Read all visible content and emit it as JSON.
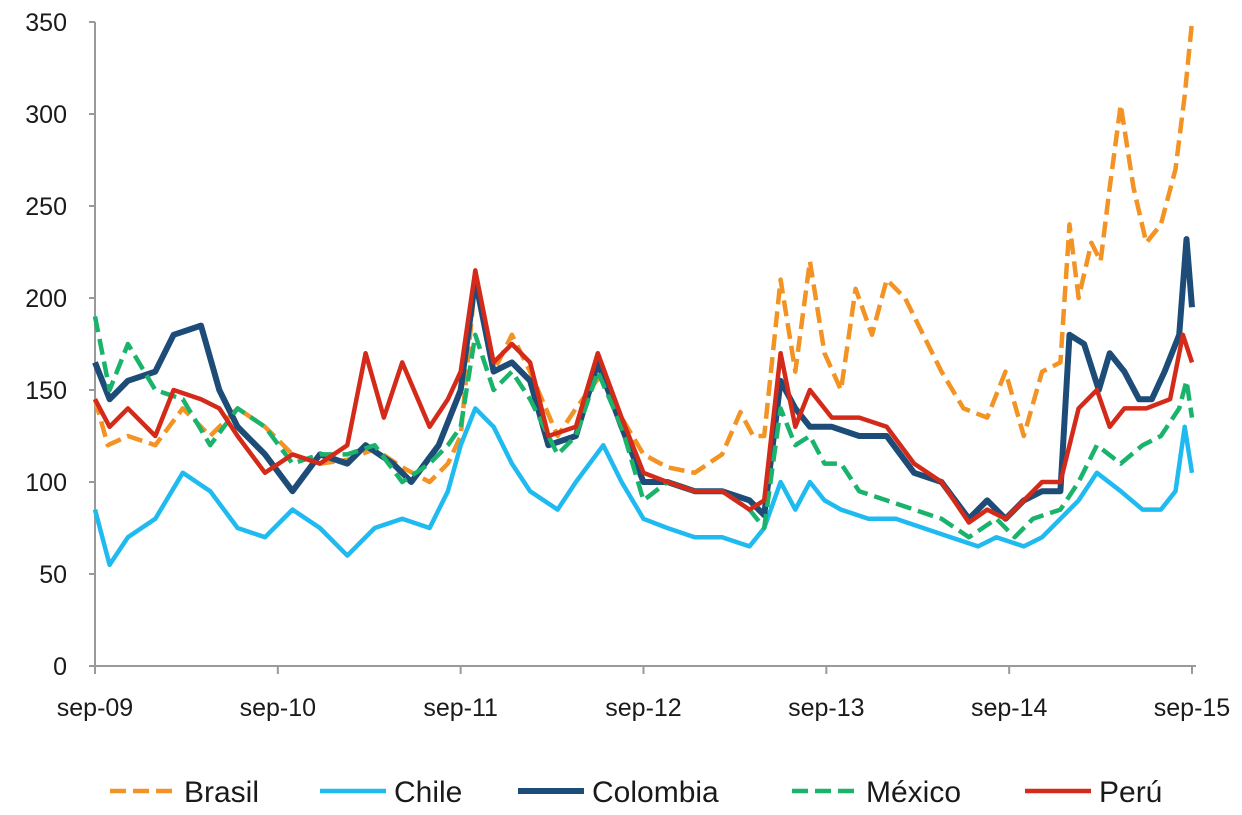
{
  "chart_data": {
    "type": "line",
    "title": "",
    "xlabel": "",
    "ylabel": "",
    "ylim": [
      0,
      350
    ],
    "yticks": [
      0,
      50,
      100,
      150,
      200,
      250,
      300,
      350
    ],
    "xticks": [
      "sep-09",
      "sep-10",
      "sep-11",
      "sep-12",
      "sep-13",
      "sep-14",
      "sep-15"
    ],
    "xlim": [
      2009.67,
      2015.67
    ],
    "grid": false,
    "legend_position": "bottom",
    "series": [
      {
        "name": "Brasil",
        "color": "#f29324",
        "dash": "dashed",
        "points": [
          [
            2009.67,
            145
          ],
          [
            2009.74,
            120
          ],
          [
            2009.85,
            125
          ],
          [
            2010.0,
            120
          ],
          [
            2010.15,
            140
          ],
          [
            2010.3,
            125
          ],
          [
            2010.45,
            140
          ],
          [
            2010.6,
            130
          ],
          [
            2010.75,
            115
          ],
          [
            2010.9,
            110
          ],
          [
            2011.05,
            112
          ],
          [
            2011.2,
            118
          ],
          [
            2011.35,
            108
          ],
          [
            2011.5,
            100
          ],
          [
            2011.6,
            110
          ],
          [
            2011.67,
            125
          ],
          [
            2011.75,
            210
          ],
          [
            2011.85,
            160
          ],
          [
            2011.95,
            180
          ],
          [
            2012.05,
            160
          ],
          [
            2012.2,
            125
          ],
          [
            2012.3,
            140
          ],
          [
            2012.45,
            160
          ],
          [
            2012.55,
            135
          ],
          [
            2012.67,
            115
          ],
          [
            2012.8,
            108
          ],
          [
            2012.95,
            105
          ],
          [
            2013.1,
            115
          ],
          [
            2013.2,
            138
          ],
          [
            2013.27,
            125
          ],
          [
            2013.33,
            125
          ],
          [
            2013.42,
            210
          ],
          [
            2013.5,
            160
          ],
          [
            2013.58,
            220
          ],
          [
            2013.66,
            170
          ],
          [
            2013.75,
            150
          ],
          [
            2013.83,
            205
          ],
          [
            2013.92,
            180
          ],
          [
            2014.0,
            210
          ],
          [
            2014.1,
            200
          ],
          [
            2014.2,
            180
          ],
          [
            2014.3,
            160
          ],
          [
            2014.42,
            140
          ],
          [
            2014.55,
            135
          ],
          [
            2014.65,
            160
          ],
          [
            2014.75,
            125
          ],
          [
            2014.85,
            160
          ],
          [
            2014.95,
            165
          ],
          [
            2015.0,
            240
          ],
          [
            2015.05,
            200
          ],
          [
            2015.12,
            230
          ],
          [
            2015.17,
            220
          ],
          [
            2015.22,
            260
          ],
          [
            2015.28,
            305
          ],
          [
            2015.35,
            260
          ],
          [
            2015.42,
            230
          ],
          [
            2015.5,
            240
          ],
          [
            2015.58,
            270
          ],
          [
            2015.63,
            310
          ],
          [
            2015.67,
            350
          ]
        ]
      },
      {
        "name": "Chile",
        "color": "#1fbaf0",
        "dash": "solid",
        "points": [
          [
            2009.67,
            85
          ],
          [
            2009.75,
            55
          ],
          [
            2009.85,
            70
          ],
          [
            2010.0,
            80
          ],
          [
            2010.15,
            105
          ],
          [
            2010.3,
            95
          ],
          [
            2010.45,
            75
          ],
          [
            2010.6,
            70
          ],
          [
            2010.75,
            85
          ],
          [
            2010.9,
            75
          ],
          [
            2011.05,
            60
          ],
          [
            2011.2,
            75
          ],
          [
            2011.35,
            80
          ],
          [
            2011.5,
            75
          ],
          [
            2011.6,
            95
          ],
          [
            2011.67,
            120
          ],
          [
            2011.75,
            140
          ],
          [
            2011.85,
            130
          ],
          [
            2011.95,
            110
          ],
          [
            2012.05,
            95
          ],
          [
            2012.2,
            85
          ],
          [
            2012.3,
            100
          ],
          [
            2012.45,
            120
          ],
          [
            2012.55,
            100
          ],
          [
            2012.67,
            80
          ],
          [
            2012.8,
            75
          ],
          [
            2012.95,
            70
          ],
          [
            2013.1,
            70
          ],
          [
            2013.25,
            65
          ],
          [
            2013.33,
            75
          ],
          [
            2013.42,
            100
          ],
          [
            2013.5,
            85
          ],
          [
            2013.58,
            100
          ],
          [
            2013.66,
            90
          ],
          [
            2013.75,
            85
          ],
          [
            2013.9,
            80
          ],
          [
            2014.05,
            80
          ],
          [
            2014.2,
            75
          ],
          [
            2014.35,
            70
          ],
          [
            2014.5,
            65
          ],
          [
            2014.6,
            70
          ],
          [
            2014.75,
            65
          ],
          [
            2014.85,
            70
          ],
          [
            2014.95,
            80
          ],
          [
            2015.05,
            90
          ],
          [
            2015.15,
            105
          ],
          [
            2015.28,
            95
          ],
          [
            2015.4,
            85
          ],
          [
            2015.5,
            85
          ],
          [
            2015.58,
            95
          ],
          [
            2015.63,
            130
          ],
          [
            2015.67,
            105
          ]
        ]
      },
      {
        "name": "Colombia",
        "color": "#1e4c78",
        "dash": "solid",
        "points": [
          [
            2009.67,
            165
          ],
          [
            2009.75,
            145
          ],
          [
            2009.85,
            155
          ],
          [
            2010.0,
            160
          ],
          [
            2010.1,
            180
          ],
          [
            2010.25,
            185
          ],
          [
            2010.35,
            150
          ],
          [
            2010.45,
            130
          ],
          [
            2010.6,
            115
          ],
          [
            2010.75,
            95
          ],
          [
            2010.9,
            115
          ],
          [
            2011.05,
            110
          ],
          [
            2011.15,
            120
          ],
          [
            2011.3,
            110
          ],
          [
            2011.4,
            100
          ],
          [
            2011.55,
            120
          ],
          [
            2011.67,
            150
          ],
          [
            2011.75,
            210
          ],
          [
            2011.85,
            160
          ],
          [
            2011.95,
            165
          ],
          [
            2012.05,
            155
          ],
          [
            2012.15,
            120
          ],
          [
            2012.3,
            125
          ],
          [
            2012.42,
            165
          ],
          [
            2012.55,
            130
          ],
          [
            2012.67,
            100
          ],
          [
            2012.8,
            100
          ],
          [
            2012.95,
            95
          ],
          [
            2013.1,
            95
          ],
          [
            2013.25,
            90
          ],
          [
            2013.33,
            82
          ],
          [
            2013.42,
            155
          ],
          [
            2013.5,
            140
          ],
          [
            2013.58,
            130
          ],
          [
            2013.7,
            130
          ],
          [
            2013.85,
            125
          ],
          [
            2014.0,
            125
          ],
          [
            2014.15,
            105
          ],
          [
            2014.3,
            100
          ],
          [
            2014.45,
            80
          ],
          [
            2014.55,
            90
          ],
          [
            2014.65,
            80
          ],
          [
            2014.75,
            90
          ],
          [
            2014.85,
            95
          ],
          [
            2014.95,
            95
          ],
          [
            2015.0,
            180
          ],
          [
            2015.08,
            175
          ],
          [
            2015.16,
            150
          ],
          [
            2015.22,
            170
          ],
          [
            2015.3,
            160
          ],
          [
            2015.38,
            145
          ],
          [
            2015.45,
            145
          ],
          [
            2015.52,
            160
          ],
          [
            2015.6,
            180
          ],
          [
            2015.64,
            232
          ],
          [
            2015.67,
            195
          ]
        ]
      },
      {
        "name": "México",
        "color": "#1ab36b",
        "dash": "dashed",
        "points": [
          [
            2009.67,
            190
          ],
          [
            2009.75,
            150
          ],
          [
            2009.85,
            175
          ],
          [
            2010.0,
            150
          ],
          [
            2010.15,
            145
          ],
          [
            2010.3,
            120
          ],
          [
            2010.45,
            140
          ],
          [
            2010.6,
            130
          ],
          [
            2010.75,
            110
          ],
          [
            2010.9,
            115
          ],
          [
            2011.05,
            115
          ],
          [
            2011.2,
            120
          ],
          [
            2011.35,
            100
          ],
          [
            2011.5,
            110
          ],
          [
            2011.6,
            120
          ],
          [
            2011.67,
            130
          ],
          [
            2011.75,
            180
          ],
          [
            2011.85,
            150
          ],
          [
            2011.95,
            160
          ],
          [
            2012.05,
            145
          ],
          [
            2012.2,
            115
          ],
          [
            2012.3,
            125
          ],
          [
            2012.42,
            160
          ],
          [
            2012.55,
            130
          ],
          [
            2012.67,
            90
          ],
          [
            2012.8,
            100
          ],
          [
            2012.95,
            95
          ],
          [
            2013.1,
            95
          ],
          [
            2013.25,
            85
          ],
          [
            2013.33,
            75
          ],
          [
            2013.42,
            140
          ],
          [
            2013.5,
            120
          ],
          [
            2013.58,
            125
          ],
          [
            2013.66,
            110
          ],
          [
            2013.75,
            110
          ],
          [
            2013.85,
            95
          ],
          [
            2014.0,
            90
          ],
          [
            2014.15,
            85
          ],
          [
            2014.3,
            80
          ],
          [
            2014.45,
            70
          ],
          [
            2014.6,
            80
          ],
          [
            2014.7,
            70
          ],
          [
            2014.8,
            80
          ],
          [
            2014.95,
            85
          ],
          [
            2015.05,
            100
          ],
          [
            2015.15,
            120
          ],
          [
            2015.28,
            110
          ],
          [
            2015.4,
            120
          ],
          [
            2015.5,
            125
          ],
          [
            2015.6,
            140
          ],
          [
            2015.64,
            155
          ],
          [
            2015.67,
            135
          ]
        ]
      },
      {
        "name": "Perú",
        "color": "#d42a1a",
        "dash": "solid",
        "points": [
          [
            2009.67,
            145
          ],
          [
            2009.75,
            130
          ],
          [
            2009.85,
            140
          ],
          [
            2010.0,
            125
          ],
          [
            2010.1,
            150
          ],
          [
            2010.25,
            145
          ],
          [
            2010.35,
            140
          ],
          [
            2010.45,
            125
          ],
          [
            2010.6,
            105
          ],
          [
            2010.75,
            115
          ],
          [
            2010.9,
            110
          ],
          [
            2011.05,
            120
          ],
          [
            2011.15,
            170
          ],
          [
            2011.25,
            135
          ],
          [
            2011.35,
            165
          ],
          [
            2011.5,
            130
          ],
          [
            2011.6,
            145
          ],
          [
            2011.67,
            160
          ],
          [
            2011.75,
            215
          ],
          [
            2011.85,
            165
          ],
          [
            2011.95,
            175
          ],
          [
            2012.05,
            165
          ],
          [
            2012.15,
            125
          ],
          [
            2012.3,
            130
          ],
          [
            2012.42,
            170
          ],
          [
            2012.55,
            135
          ],
          [
            2012.67,
            105
          ],
          [
            2012.8,
            100
          ],
          [
            2012.95,
            95
          ],
          [
            2013.1,
            95
          ],
          [
            2013.25,
            85
          ],
          [
            2013.33,
            90
          ],
          [
            2013.42,
            170
          ],
          [
            2013.5,
            130
          ],
          [
            2013.58,
            150
          ],
          [
            2013.7,
            135
          ],
          [
            2013.85,
            135
          ],
          [
            2014.0,
            130
          ],
          [
            2014.15,
            110
          ],
          [
            2014.3,
            100
          ],
          [
            2014.45,
            78
          ],
          [
            2014.55,
            85
          ],
          [
            2014.65,
            80
          ],
          [
            2014.75,
            90
          ],
          [
            2014.85,
            100
          ],
          [
            2014.95,
            100
          ],
          [
            2015.05,
            140
          ],
          [
            2015.15,
            150
          ],
          [
            2015.22,
            130
          ],
          [
            2015.3,
            140
          ],
          [
            2015.42,
            140
          ],
          [
            2015.55,
            145
          ],
          [
            2015.62,
            180
          ],
          [
            2015.67,
            165
          ]
        ]
      }
    ]
  }
}
